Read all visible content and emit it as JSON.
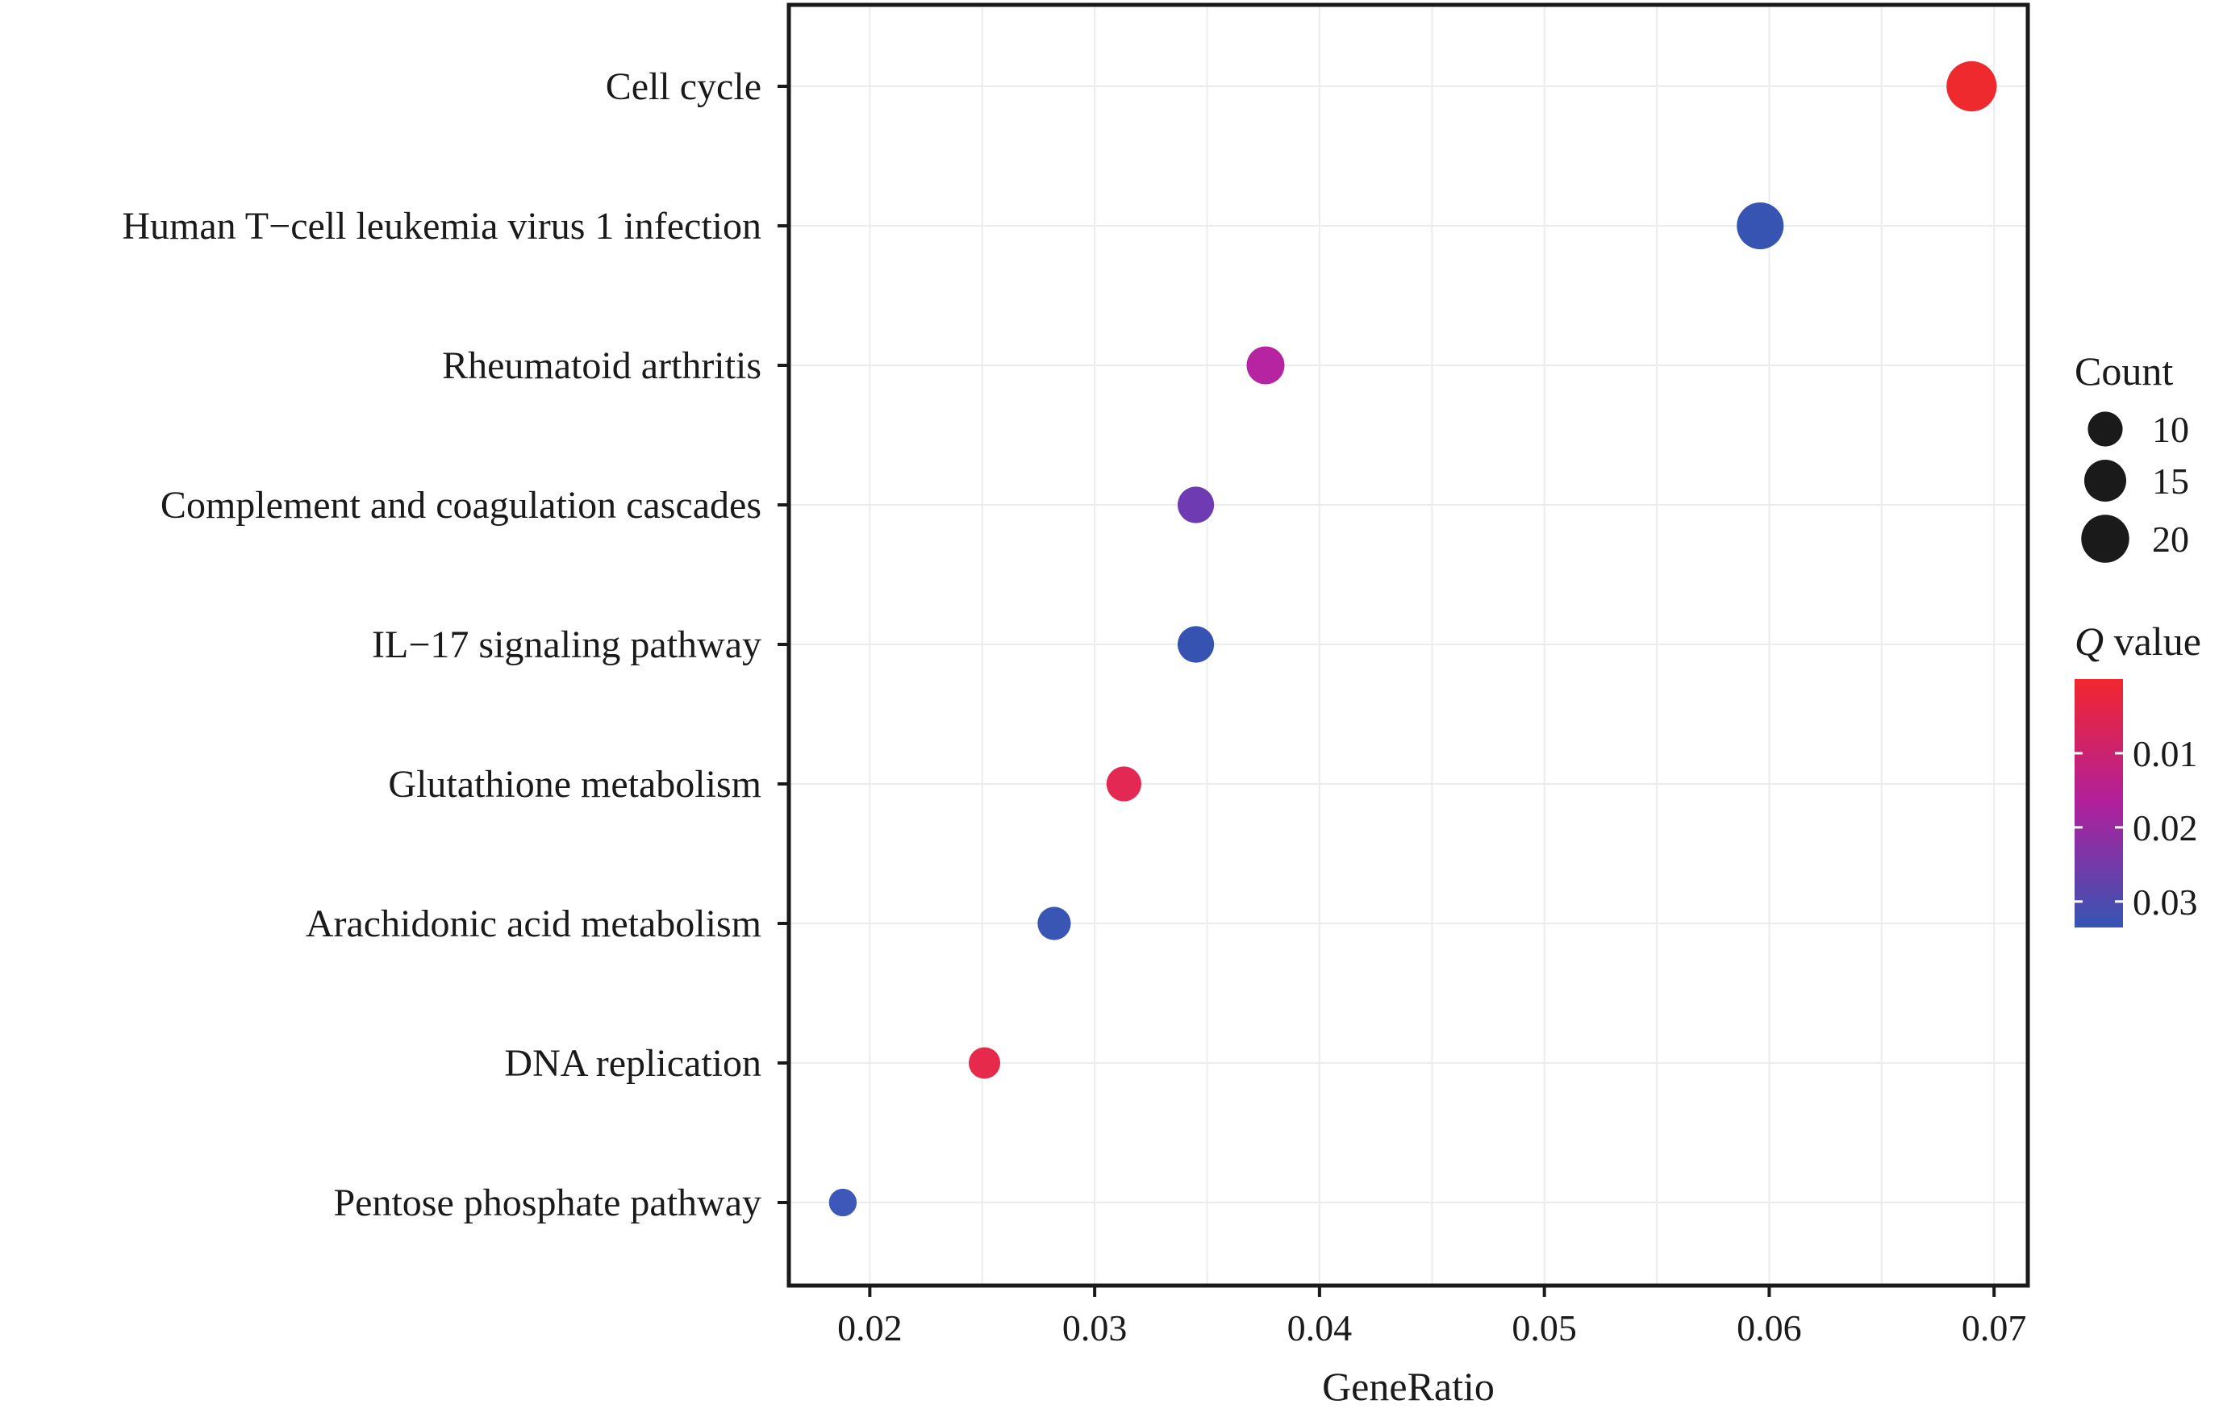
{
  "chart_data": {
    "type": "scatter",
    "title": "",
    "xlabel": "GeneRatio",
    "ylabel": "",
    "xlim": [
      0.0164,
      0.0715
    ],
    "x_ticks": [
      0.02,
      0.03,
      0.04,
      0.05,
      0.06,
      0.07
    ],
    "x_tick_labels": [
      "0.02",
      "0.03",
      "0.04",
      "0.05",
      "0.06",
      "0.07"
    ],
    "grid": true,
    "legend_position": "right",
    "categories": [
      "Cell cycle",
      "Human T−cell leukemia virus 1 infection",
      "Rheumatoid arthritis",
      "Complement and coagulation cascades",
      "IL−17 signaling pathway",
      "Glutathione metabolism",
      "Arachidonic acid metabolism",
      "DNA replication",
      "Pentose phosphate pathway"
    ],
    "points": [
      {
        "category": "Cell cycle",
        "x": 0.069,
        "count": 22,
        "q": 0.0001,
        "color": "#ee2a2f"
      },
      {
        "category": "Human T−cell leukemia virus 1 infection",
        "x": 0.0596,
        "count": 19,
        "q": 0.0325,
        "color": "#3854b3"
      },
      {
        "category": "Rheumatoid arthritis",
        "x": 0.0376,
        "count": 12,
        "q": 0.018,
        "color": "#b624a2"
      },
      {
        "category": "Complement and coagulation cascades",
        "x": 0.0345,
        "count": 11,
        "q": 0.0255,
        "color": "#6e3bb2"
      },
      {
        "category": "IL−17 signaling pathway",
        "x": 0.0345,
        "count": 11,
        "q": 0.0322,
        "color": "#3653b1"
      },
      {
        "category": "Glutathione metabolism",
        "x": 0.0313,
        "count": 10,
        "q": 0.006,
        "color": "#e22853"
      },
      {
        "category": "Arachidonic acid metabolism",
        "x": 0.0282,
        "count": 9,
        "q": 0.0318,
        "color": "#3a56b5"
      },
      {
        "category": "DNA replication",
        "x": 0.0251,
        "count": 8,
        "q": 0.004,
        "color": "#e52a4c"
      },
      {
        "category": "Pentose phosphate pathway",
        "x": 0.0188,
        "count": 6,
        "q": 0.0315,
        "color": "#3d58b8"
      }
    ],
    "size_legend": {
      "title": "Count",
      "values": [
        10,
        15,
        20
      ],
      "labels": [
        "10",
        "15",
        "20"
      ]
    },
    "color_legend": {
      "title": "Q value",
      "title_italic_part": "Q",
      "title_rest": " value",
      "ticks": [
        0.01,
        0.02,
        0.03
      ],
      "tick_labels": [
        "0.01",
        "0.02",
        "0.03"
      ],
      "q_range": [
        0.0,
        0.0335
      ],
      "low_color": "#f2262e",
      "mid_color": "#b0209c",
      "high_color": "#3555b3"
    }
  }
}
